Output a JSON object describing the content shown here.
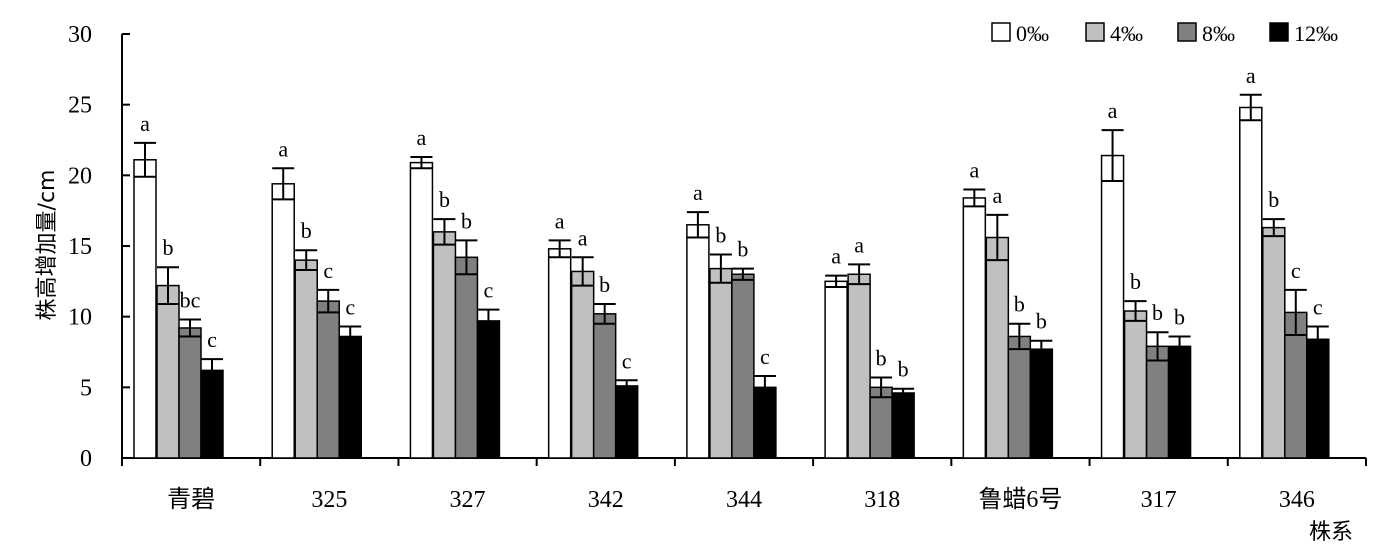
{
  "chart_data": {
    "type": "bar",
    "title": "",
    "ylabel": "株高增加量/cm",
    "xlabel": "株系",
    "ylim": [
      0,
      30
    ],
    "yticks": [
      0,
      5,
      10,
      15,
      20,
      25,
      30
    ],
    "grid": false,
    "legend_position": "top-right",
    "categories": [
      "青碧",
      "325",
      "327",
      "342",
      "344",
      "318",
      "鲁蜡6号",
      "317",
      "346"
    ],
    "series": [
      {
        "name": "0‰",
        "color": "#ffffff",
        "values": [
          21.1,
          19.4,
          20.9,
          14.8,
          16.5,
          12.5,
          18.4,
          21.4,
          24.8
        ],
        "errors": [
          1.2,
          1.1,
          0.4,
          0.6,
          0.9,
          0.4,
          0.6,
          1.8,
          0.9
        ],
        "sig": [
          "a",
          "a",
          "a",
          "a",
          "a",
          "a",
          "a",
          "a",
          "a"
        ]
      },
      {
        "name": "4‰",
        "color": "#c0c0c0",
        "values": [
          12.2,
          14.0,
          16.0,
          13.2,
          13.4,
          13.0,
          15.6,
          10.4,
          16.3
        ],
        "errors": [
          1.3,
          0.7,
          0.9,
          1.0,
          1.0,
          0.7,
          1.6,
          0.7,
          0.6
        ],
        "sig": [
          "b",
          "b",
          "b",
          "a",
          "b",
          "a",
          "a",
          "b",
          "b"
        ]
      },
      {
        "name": "8‰",
        "color": "#808080",
        "values": [
          9.2,
          11.1,
          14.2,
          10.2,
          13.0,
          5.0,
          8.6,
          7.9,
          10.3
        ],
        "errors": [
          0.6,
          0.8,
          1.2,
          0.7,
          0.4,
          0.7,
          0.9,
          1.0,
          1.6
        ],
        "sig": [
          "bc",
          "c",
          "b",
          "b",
          "b",
          "b",
          "b",
          "b",
          "c"
        ]
      },
      {
        "name": "12‰",
        "color": "#000000",
        "values": [
          6.2,
          8.6,
          9.7,
          5.1,
          5.0,
          4.6,
          7.7,
          7.9,
          8.4
        ],
        "errors": [
          0.8,
          0.7,
          0.8,
          0.4,
          0.8,
          0.3,
          0.6,
          0.7,
          0.9
        ],
        "sig": [
          "c",
          "c",
          "c",
          "c",
          "c",
          "b",
          "b",
          "b",
          "c"
        ]
      }
    ]
  }
}
